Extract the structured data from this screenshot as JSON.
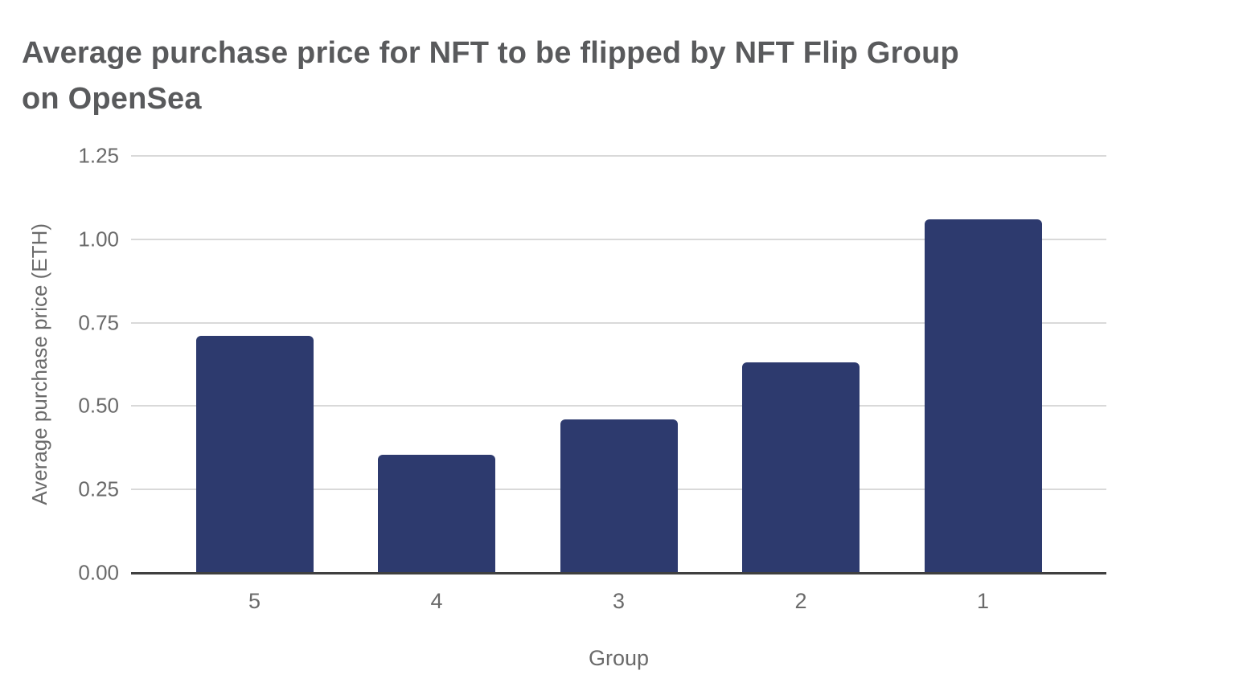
{
  "chart_data": {
    "type": "bar",
    "title": "Average purchase price for NFT to be flipped by NFT Flip Group on OpenSea",
    "title_lines": [
      "Average purchase price for NFT to be flipped by NFT Flip Group",
      "on OpenSea"
    ],
    "xlabel": "Group",
    "ylabel": "Average purchase price (ETH)",
    "categories": [
      "5",
      "4",
      "3",
      "2",
      "1"
    ],
    "values": [
      0.71,
      0.355,
      0.46,
      0.63,
      1.06
    ],
    "ylim": [
      0,
      1.25
    ],
    "ytick_step": 0.25,
    "yticks": [
      "0.00",
      "0.25",
      "0.50",
      "0.75",
      "1.00",
      "1.25"
    ],
    "grid": "horizontal-only",
    "legend": "none",
    "colors": {
      "bar": "#2d3a6e",
      "grid": "#d9d9d9",
      "axis_line": "#3f3f3f",
      "axis_text": "#6a6a6a",
      "title_text": "#595a5c",
      "background": "#ffffff"
    }
  }
}
